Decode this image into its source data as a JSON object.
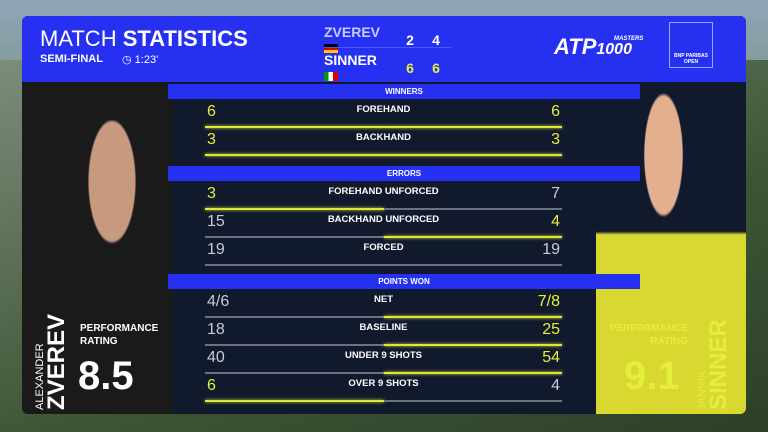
{
  "header": {
    "title_light": "MATCH",
    "title_bold": "STATISTICS",
    "round": "SEMI-FINAL",
    "duration": "1:23'",
    "clock_icon": "clock-icon"
  },
  "scoreboard": [
    {
      "name": "ZVEREV",
      "flag": "germany",
      "sets": [
        "2",
        "4"
      ]
    },
    {
      "name": "SINNER",
      "flag": "italy",
      "sets": [
        "6",
        "6"
      ]
    }
  ],
  "logos": {
    "atp": "ATP",
    "masters": "MASTERS",
    "thousand": "1000",
    "tournament": "BNP PARIBAS OPEN"
  },
  "players": {
    "left": {
      "first": "ALEXANDER",
      "last": "ZVEREV",
      "perf_label": "PERFORMANCE RATING",
      "rating": "8.5"
    },
    "right": {
      "first": "JANNIK",
      "last": "SINNER",
      "perf_label": "PERFORMANCE RATING",
      "rating": "9.1"
    }
  },
  "colors": {
    "accent_blue": "#2530f0",
    "highlight": "#e6ee3c",
    "panel": "#111a2c"
  },
  "sections": [
    {
      "title": "WINNERS",
      "rows": [
        {
          "label": "FOREHAND",
          "left": "6",
          "right": "6",
          "highlight": "both"
        },
        {
          "label": "BACKHAND",
          "left": "3",
          "right": "3",
          "highlight": "both"
        }
      ]
    },
    {
      "title": "ERRORS",
      "rows": [
        {
          "label": "FOREHAND UNFORCED",
          "left": "3",
          "right": "7",
          "highlight": "left"
        },
        {
          "label": "BACKHAND UNFORCED",
          "left": "15",
          "right": "4",
          "highlight": "right"
        },
        {
          "label": "FORCED",
          "left": "19",
          "right": "19",
          "highlight": "none"
        }
      ]
    },
    {
      "title": "POINTS WON",
      "rows": [
        {
          "label": "NET",
          "left": "4/6",
          "right": "7/8",
          "highlight": "right"
        },
        {
          "label": "BASELINE",
          "left": "18",
          "right": "25",
          "highlight": "right"
        },
        {
          "label": "UNDER 9 SHOTS",
          "left": "40",
          "right": "54",
          "highlight": "right"
        },
        {
          "label": "OVER 9 SHOTS",
          "left": "6",
          "right": "4",
          "highlight": "left"
        }
      ]
    }
  ]
}
